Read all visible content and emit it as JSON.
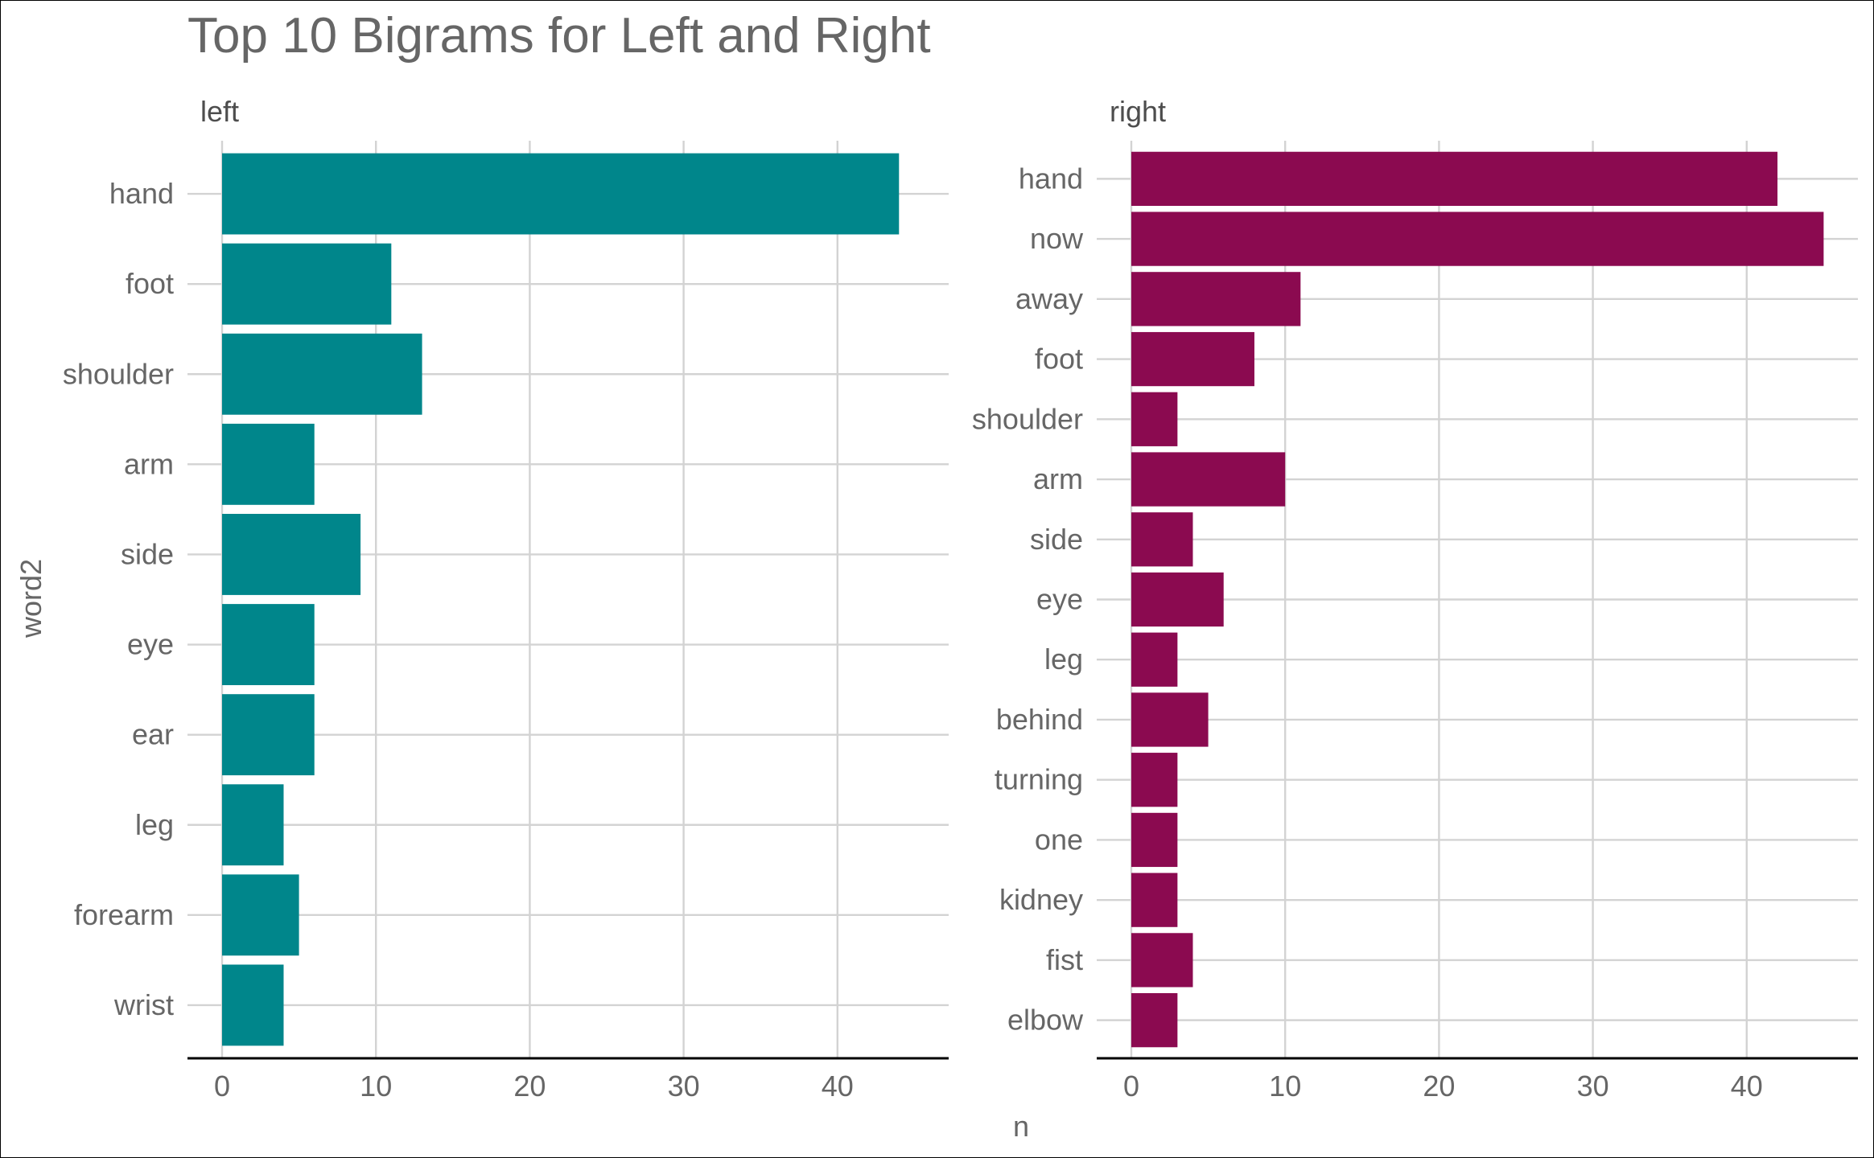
{
  "chart_data": {
    "type": "bar",
    "orientation": "horizontal",
    "title": "Top 10 Bigrams for Left and Right",
    "xlabel": "n",
    "ylabel": "word2",
    "xlim": [
      0,
      47
    ],
    "x_ticks": [
      "0",
      "10",
      "20",
      "30",
      "40"
    ],
    "grid": true,
    "legend": "none",
    "facets": [
      {
        "label": "left",
        "color": "#00868B",
        "categories": [
          "hand",
          "foot",
          "shoulder",
          "arm",
          "side",
          "eye",
          "ear",
          "leg",
          "forearm",
          "wrist"
        ],
        "values": [
          44,
          11,
          13,
          6,
          9,
          6,
          6,
          4,
          5,
          4
        ]
      },
      {
        "label": "right",
        "color": "#8B0A50",
        "categories": [
          "hand",
          "now",
          "away",
          "foot",
          "shoulder",
          "arm",
          "side",
          "eye",
          "leg",
          "behind",
          "turning",
          "one",
          "kidney",
          "fist",
          "elbow"
        ],
        "values": [
          42,
          45,
          11,
          8,
          3,
          10,
          4,
          6,
          3,
          5,
          3,
          3,
          3,
          4,
          3
        ]
      }
    ]
  }
}
